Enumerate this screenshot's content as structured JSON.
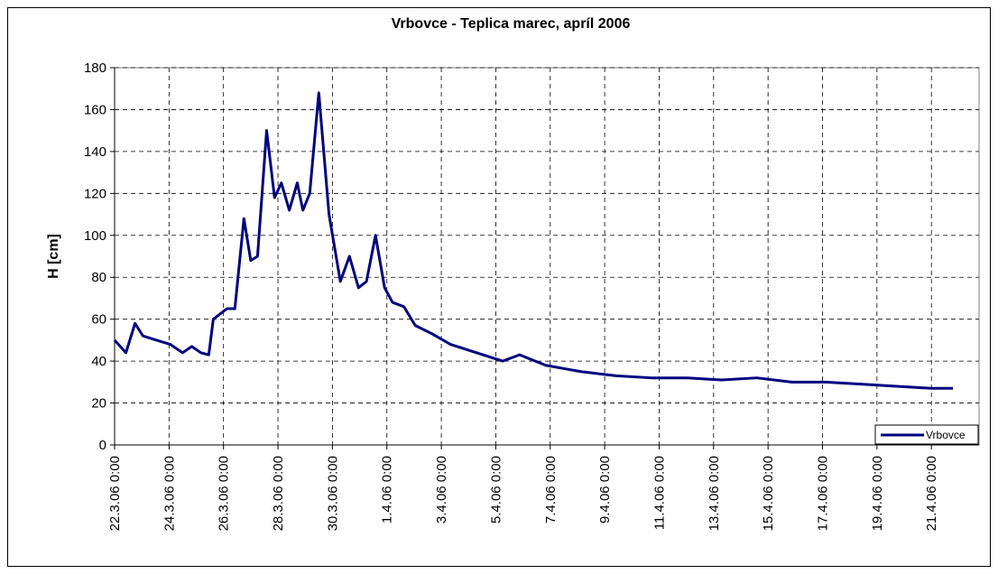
{
  "chart_data": {
    "type": "line",
    "title": "Vrbovce - Teplica marec, apríl 2006",
    "y_label": "H [cm]",
    "x": [
      "22.3.06 0:00",
      "22.3.06 10:00",
      "22.3.06 18:00",
      "23.3.06 1:00",
      "23.3.06 13:00",
      "24.3.06 1:00",
      "24.3.06 12:00",
      "24.3.06 20:00",
      "25.3.06 4:00",
      "25.3.06 11:00",
      "25.3.06 15:00",
      "26.3.06 3:00",
      "26.3.06 10:00",
      "26.3.06 18:00",
      "27.3.06 0:00",
      "27.3.06 6:00",
      "27.3.06 14:00",
      "27.3.06 21:00",
      "28.3.06 3:00",
      "28.3.06 10:00",
      "28.3.06 17:00",
      "28.3.06 22:00",
      "29.3.06 4:00",
      "29.3.06 12:00",
      "29.3.06 21:00",
      "30.3.06 7:00",
      "30.3.06 15:00",
      "30.3.06 23:00",
      "31.3.06 6:00",
      "31.3.06 14:00",
      "31.3.06 22:00",
      "1.4.06 5:00",
      "1.4.06 15:00",
      "2.4.06 1:00",
      "2.4.06 16:00",
      "3.4.06 8:00",
      "4.4.06 7:00",
      "5.4.06 6:00",
      "5.4.06 21:00",
      "6.4.06 20:00",
      "8.4.06 3:00",
      "9.4.06 10:00",
      "10.4.06 17:00",
      "12.4.06 0:00",
      "13.4.06 7:00",
      "14.4.06 14:00",
      "15.4.06 21:00",
      "17.4.06 3:00",
      "18.4.06 10:00",
      "19.4.06 17:00",
      "21.4.06 0:00",
      "21.4.06 19:00"
    ],
    "series": [
      {
        "name": "Vrbovce",
        "color": "#000080",
        "values": [
          50,
          44,
          58,
          52,
          50,
          48,
          44,
          47,
          44,
          43,
          60,
          65,
          65,
          108,
          88,
          90,
          150,
          118,
          125,
          112,
          125,
          112,
          120,
          168,
          110,
          78,
          90,
          75,
          78,
          100,
          75,
          68,
          66,
          57,
          53,
          48,
          44,
          40,
          43,
          38,
          35,
          33,
          32,
          32,
          31,
          32,
          30,
          30,
          29,
          28,
          27,
          27
        ]
      }
    ],
    "xlim": [
      "22.3.06 0:00",
      "22.4.06 18:00"
    ],
    "xticks": [
      "22.3.06 0:00",
      "24.3.06 0:00",
      "26.3.06 0:00",
      "28.3.06 0:00",
      "30.3.06 0:00",
      "1.4.06 0:00",
      "3.4.06 0:00",
      "5.4.06 0:00",
      "7.4.06 0:00",
      "9.4.06 0:00",
      "11.4.06 0:00",
      "13.4.06 0:00",
      "15.4.06 0:00",
      "17.4.06 0:00",
      "19.4.06 0:00",
      "21.4.06 0:00"
    ],
    "ylim": [
      0,
      180
    ],
    "yticks": [
      0,
      20,
      40,
      60,
      80,
      100,
      120,
      140,
      160,
      180
    ],
    "grid": true,
    "legend": "lower right"
  }
}
